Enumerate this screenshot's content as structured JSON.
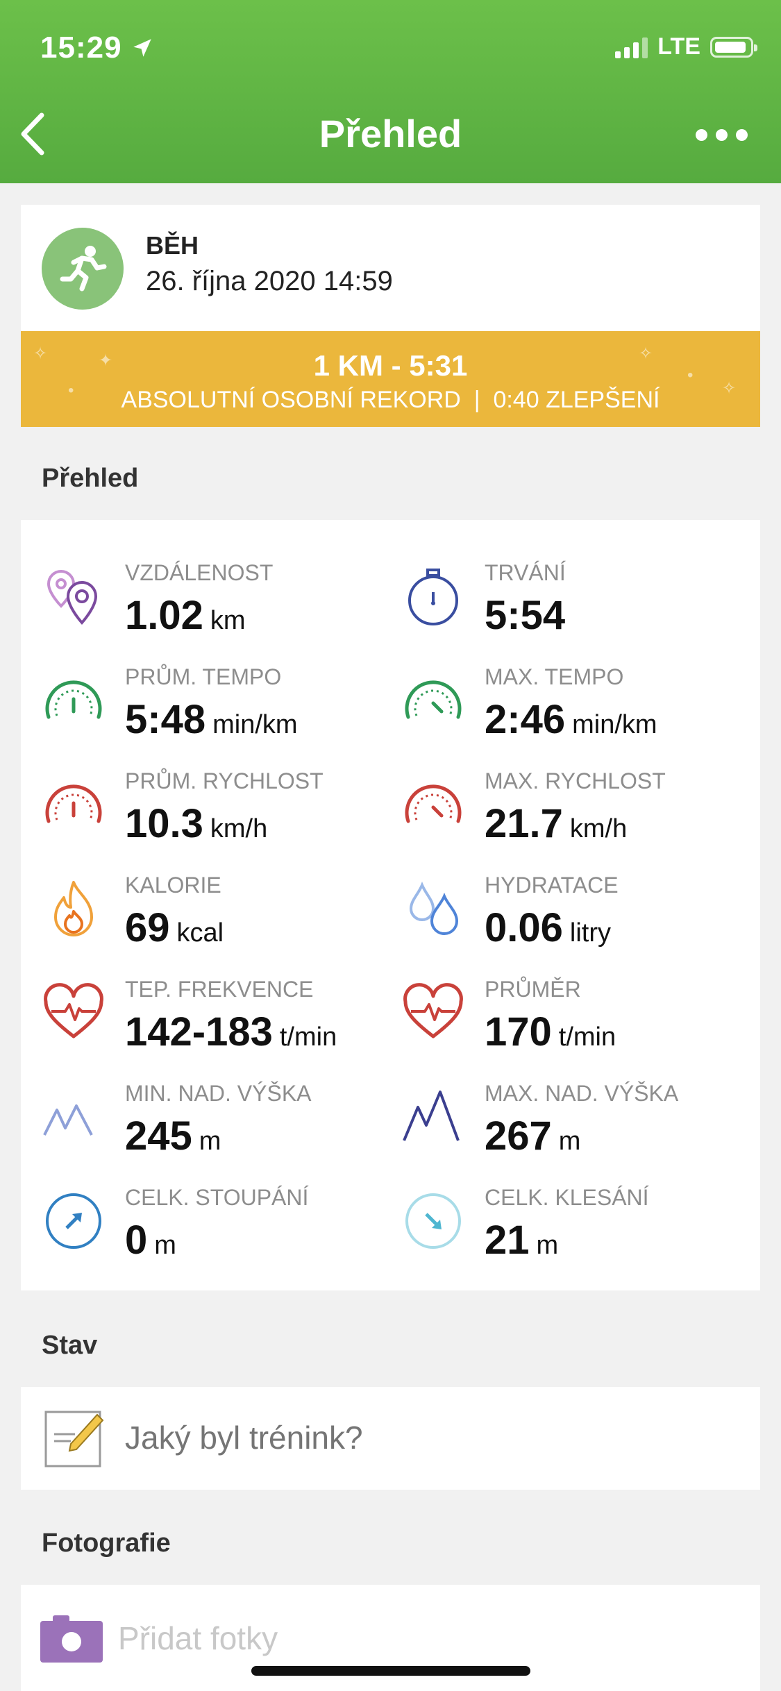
{
  "status_bar": {
    "time": "15:29",
    "network": "LTE"
  },
  "nav": {
    "title": "Přehled"
  },
  "activity": {
    "type": "BĚH",
    "date": "26. října 2020 14:59",
    "record_title": "1 KM - 5:31",
    "record_subtitle": "ABSOLUTNÍ OSOBNÍ REKORD  |  0:40 ZLEPŠENÍ",
    "accent_color": "#ebb73c"
  },
  "overview": {
    "heading": "Přehled",
    "stats": [
      {
        "label": "VZDÁLENOST",
        "value": "1.02",
        "unit": "km",
        "icon": "location-pins-icon"
      },
      {
        "label": "TRVÁNÍ",
        "value": "5:54",
        "unit": "",
        "icon": "stopwatch-icon"
      },
      {
        "label": "PRŮM. TEMPO",
        "value": "5:48",
        "unit": "min/km",
        "icon": "gauge-icon"
      },
      {
        "label": "MAX. TEMPO",
        "value": "2:46",
        "unit": "min/km",
        "icon": "gauge-icon"
      },
      {
        "label": "PRŮM. RYCHLOST",
        "value": "10.3",
        "unit": "km/h",
        "icon": "speedometer-icon"
      },
      {
        "label": "MAX. RYCHLOST",
        "value": "21.7",
        "unit": "km/h",
        "icon": "speedometer-icon"
      },
      {
        "label": "KALORIE",
        "value": "69",
        "unit": "kcal",
        "icon": "flame-icon"
      },
      {
        "label": "HYDRATACE",
        "value": "0.06",
        "unit": "litry",
        "icon": "water-drops-icon"
      },
      {
        "label": "TEP. FREKVENCE",
        "value": "142-183",
        "unit": "t/min",
        "icon": "heart-rate-icon"
      },
      {
        "label": "PRŮMĚR",
        "value": "170",
        "unit": "t/min",
        "icon": "heart-rate-icon"
      },
      {
        "label": "MIN. NAD. VÝŠKA",
        "value": "245",
        "unit": "m",
        "icon": "mountains-icon"
      },
      {
        "label": "MAX. NAD. VÝŠKA",
        "value": "267",
        "unit": "m",
        "icon": "mountains-icon"
      },
      {
        "label": "CELK. STOUPÁNÍ",
        "value": "0",
        "unit": "m",
        "icon": "ascent-arrow-icon"
      },
      {
        "label": "CELK. KLESÁNÍ",
        "value": "21",
        "unit": "m",
        "icon": "descent-arrow-icon"
      }
    ]
  },
  "status_section": {
    "heading": "Stav",
    "placeholder": "Jaký byl trénink?"
  },
  "photos_section": {
    "heading": "Fotografie",
    "add_label": "Přidat fotky"
  },
  "colors": {
    "header_green": "#5cb343",
    "record_gold": "#ebb73c",
    "camera_purple": "#9b72b9"
  }
}
